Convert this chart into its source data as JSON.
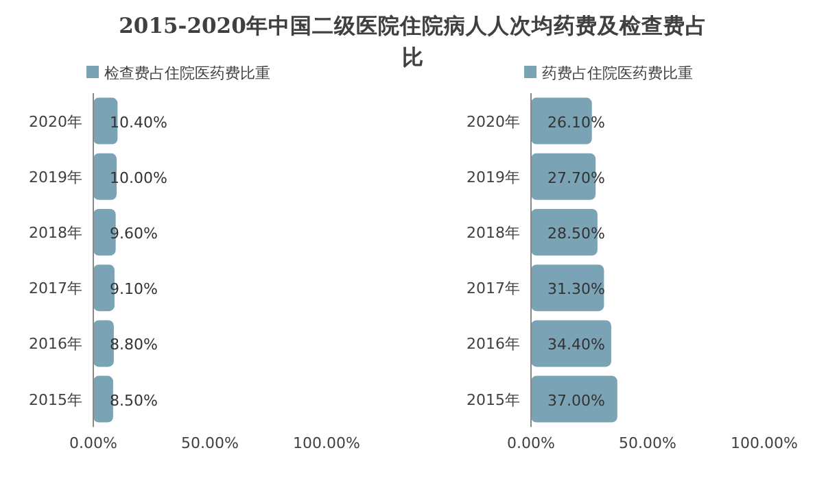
{
  "chart_data": [
    {
      "type": "bar",
      "orientation": "horizontal",
      "title": "2015-2020年中国二级医院住院病人人次均药费及检查费占比",
      "categories": [
        "2020年",
        "2019年",
        "2018年",
        "2017年",
        "2016年",
        "2015年"
      ],
      "series": [
        {
          "name": "检查费占住院医药费比重",
          "color": "#7ba3b6",
          "values": [
            10.4,
            10.0,
            9.6,
            9.1,
            8.8,
            8.5
          ],
          "value_labels": [
            "10.40%",
            "10.00%",
            "9.60%",
            "9.10%",
            "8.80%",
            "8.50%"
          ]
        }
      ],
      "xlim": [
        0,
        100
      ],
      "xticks": [
        {
          "value": 0,
          "label": "0.00%"
        },
        {
          "value": 50,
          "label": "50.00%"
        },
        {
          "value": 100,
          "label": "100.00%"
        }
      ],
      "legend": "top left"
    },
    {
      "type": "bar",
      "orientation": "horizontal",
      "categories": [
        "2020年",
        "2019年",
        "2018年",
        "2017年",
        "2016年",
        "2015年"
      ],
      "series": [
        {
          "name": "药费占住院医药费比重",
          "color": "#7ba3b6",
          "values": [
            26.1,
            27.7,
            28.5,
            31.3,
            34.4,
            37.0
          ],
          "value_labels": [
            "26.10%",
            "27.70%",
            "28.50%",
            "31.30%",
            "34.40%",
            "37.00%"
          ]
        }
      ],
      "xlim": [
        0,
        100
      ],
      "xticks": [
        {
          "value": 0,
          "label": "0.00%"
        },
        {
          "value": 50,
          "label": "50.00%"
        },
        {
          "value": 100,
          "label": "100.00%"
        }
      ],
      "legend": "top left"
    }
  ]
}
